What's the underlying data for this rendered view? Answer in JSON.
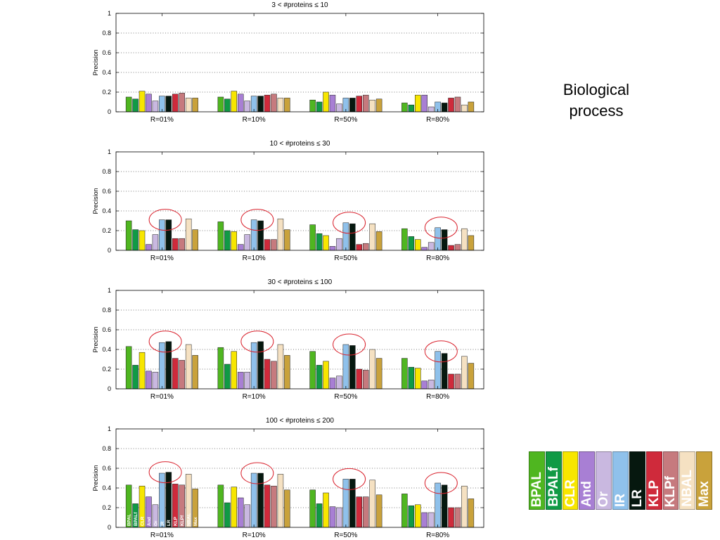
{
  "side_label": "Biological process",
  "highlight_color": "#d9232e",
  "legend": {
    "entries": [
      {
        "label": "BPAL",
        "color": "#4fb620"
      },
      {
        "label": "BPALf",
        "color": "#109a45"
      },
      {
        "label": "CLR",
        "color": "#f7e600"
      },
      {
        "label": "And",
        "color": "#a87fd4"
      },
      {
        "label": "Or",
        "color": "#c9b8e0"
      },
      {
        "label": "IR",
        "color": "#8fc1eb"
      },
      {
        "label": "LR",
        "color": "#06180f"
      },
      {
        "label": "KLP",
        "color": "#cf2a3b"
      },
      {
        "label": "KLPf",
        "color": "#c67a7e"
      },
      {
        "label": "NBAL",
        "color": "#f5e1c2"
      },
      {
        "label": "Max",
        "color": "#c9a23b"
      }
    ]
  },
  "chart_data": [
    {
      "type": "bar",
      "title": "3 < #proteins ≤ 10",
      "ylabel": "Precision",
      "categories": [
        "R=01%",
        "R=10%",
        "R=50%",
        "R=80%"
      ],
      "ylim": [
        0,
        1
      ],
      "yticks": [
        0,
        0.2,
        0.4,
        0.6,
        0.8,
        1
      ],
      "grid": true,
      "circled_series": [],
      "series_labels_in_first_group": false,
      "series": [
        {
          "name": "BPAL",
          "values": [
            0.15,
            0.15,
            0.12,
            0.09
          ]
        },
        {
          "name": "BPALf",
          "values": [
            0.13,
            0.13,
            0.1,
            0.07
          ]
        },
        {
          "name": "CLR",
          "values": [
            0.21,
            0.21,
            0.2,
            0.17
          ]
        },
        {
          "name": "And",
          "values": [
            0.18,
            0.18,
            0.17,
            0.17
          ]
        },
        {
          "name": "Or",
          "values": [
            0.11,
            0.11,
            0.08,
            0.05
          ]
        },
        {
          "name": "IR",
          "values": [
            0.16,
            0.16,
            0.14,
            0.1
          ]
        },
        {
          "name": "LR",
          "values": [
            0.16,
            0.16,
            0.14,
            0.09
          ]
        },
        {
          "name": "KLP",
          "values": [
            0.18,
            0.17,
            0.16,
            0.14
          ]
        },
        {
          "name": "KLPf",
          "values": [
            0.19,
            0.18,
            0.17,
            0.15
          ]
        },
        {
          "name": "NBAL",
          "values": [
            0.14,
            0.14,
            0.12,
            0.07
          ]
        },
        {
          "name": "Max",
          "values": [
            0.14,
            0.14,
            0.13,
            0.1
          ]
        }
      ]
    },
    {
      "type": "bar",
      "title": "10 < #proteins ≤ 30",
      "ylabel": "Precision",
      "categories": [
        "R=01%",
        "R=10%",
        "R=50%",
        "R=80%"
      ],
      "ylim": [
        0,
        1
      ],
      "yticks": [
        0,
        0.2,
        0.4,
        0.6,
        0.8,
        1
      ],
      "grid": true,
      "circled_series": [
        "IR",
        "LR"
      ],
      "series_labels_in_first_group": false,
      "series": [
        {
          "name": "BPAL",
          "values": [
            0.3,
            0.29,
            0.26,
            0.22
          ]
        },
        {
          "name": "BPALf",
          "values": [
            0.21,
            0.2,
            0.17,
            0.14
          ]
        },
        {
          "name": "CLR",
          "values": [
            0.2,
            0.19,
            0.15,
            0.11
          ]
        },
        {
          "name": "And",
          "values": [
            0.06,
            0.06,
            0.04,
            0.03
          ]
        },
        {
          "name": "Or",
          "values": [
            0.16,
            0.16,
            0.12,
            0.08
          ]
        },
        {
          "name": "IR",
          "values": [
            0.31,
            0.31,
            0.28,
            0.23
          ]
        },
        {
          "name": "LR",
          "values": [
            0.31,
            0.3,
            0.27,
            0.21
          ]
        },
        {
          "name": "KLP",
          "values": [
            0.12,
            0.11,
            0.06,
            0.05
          ]
        },
        {
          "name": "KLPf",
          "values": [
            0.12,
            0.11,
            0.07,
            0.06
          ]
        },
        {
          "name": "NBAL",
          "values": [
            0.32,
            0.32,
            0.27,
            0.22
          ]
        },
        {
          "name": "Max",
          "values": [
            0.21,
            0.21,
            0.19,
            0.15
          ]
        }
      ]
    },
    {
      "type": "bar",
      "title": "30 < #proteins ≤ 100",
      "ylabel": "Precision",
      "categories": [
        "R=01%",
        "R=10%",
        "R=50%",
        "R=80%"
      ],
      "ylim": [
        0,
        1
      ],
      "yticks": [
        0,
        0.2,
        0.4,
        0.6,
        0.8,
        1
      ],
      "grid": true,
      "circled_series": [
        "IR",
        "LR"
      ],
      "series_labels_in_first_group": false,
      "series": [
        {
          "name": "BPAL",
          "values": [
            0.43,
            0.42,
            0.38,
            0.31
          ]
        },
        {
          "name": "BPALf",
          "values": [
            0.24,
            0.25,
            0.24,
            0.22
          ]
        },
        {
          "name": "CLR",
          "values": [
            0.37,
            0.38,
            0.28,
            0.21
          ]
        },
        {
          "name": "And",
          "values": [
            0.18,
            0.17,
            0.11,
            0.08
          ]
        },
        {
          "name": "Or",
          "values": [
            0.17,
            0.17,
            0.13,
            0.09
          ]
        },
        {
          "name": "IR",
          "values": [
            0.47,
            0.47,
            0.45,
            0.38
          ]
        },
        {
          "name": "LR",
          "values": [
            0.48,
            0.48,
            0.44,
            0.36
          ]
        },
        {
          "name": "KLP",
          "values": [
            0.31,
            0.3,
            0.2,
            0.15
          ]
        },
        {
          "name": "KLPf",
          "values": [
            0.29,
            0.28,
            0.19,
            0.15
          ]
        },
        {
          "name": "NBAL",
          "values": [
            0.45,
            0.45,
            0.4,
            0.33
          ]
        },
        {
          "name": "Max",
          "values": [
            0.34,
            0.34,
            0.31,
            0.26
          ]
        }
      ]
    },
    {
      "type": "bar",
      "title": "100 < #proteins ≤ 200",
      "ylabel": "Precision",
      "categories": [
        "R=01%",
        "R=10%",
        "R=50%",
        "R=80%"
      ],
      "ylim": [
        0,
        1
      ],
      "yticks": [
        0,
        0.2,
        0.4,
        0.6,
        0.8,
        1
      ],
      "grid": true,
      "circled_series": [
        "IR",
        "LR"
      ],
      "series_labels_in_first_group": true,
      "series": [
        {
          "name": "BPAL",
          "values": [
            0.43,
            0.43,
            0.38,
            0.34
          ]
        },
        {
          "name": "BPALf",
          "values": [
            0.24,
            0.25,
            0.24,
            0.22
          ]
        },
        {
          "name": "CLR",
          "values": [
            0.42,
            0.41,
            0.35,
            0.23
          ]
        },
        {
          "name": "And",
          "values": [
            0.31,
            0.3,
            0.21,
            0.15
          ]
        },
        {
          "name": "Or",
          "values": [
            0.23,
            0.23,
            0.2,
            0.15
          ]
        },
        {
          "name": "IR",
          "values": [
            0.55,
            0.55,
            0.49,
            0.45
          ]
        },
        {
          "name": "LR",
          "values": [
            0.56,
            0.55,
            0.49,
            0.43
          ]
        },
        {
          "name": "KLP",
          "values": [
            0.44,
            0.43,
            0.31,
            0.2
          ]
        },
        {
          "name": "KLPf",
          "values": [
            0.43,
            0.42,
            0.31,
            0.2
          ]
        },
        {
          "name": "NBAL",
          "values": [
            0.54,
            0.54,
            0.48,
            0.42
          ]
        },
        {
          "name": "Max",
          "values": [
            0.39,
            0.38,
            0.33,
            0.29
          ]
        }
      ]
    }
  ]
}
